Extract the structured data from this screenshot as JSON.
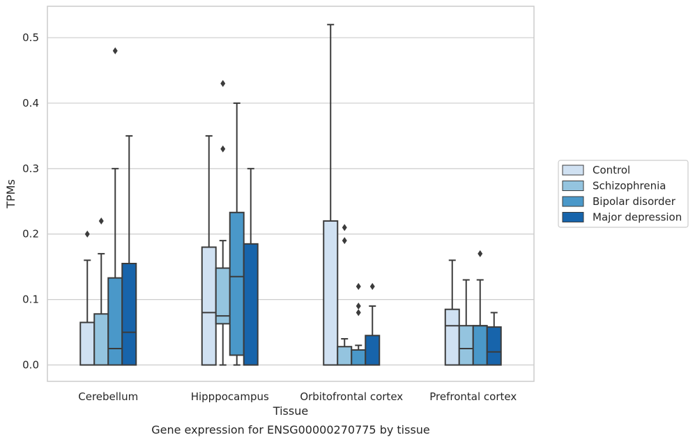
{
  "chart_data": {
    "type": "boxplot",
    "caption": "Gene expression for ENSG00000270775 by tissue",
    "xlabel": "Tissue",
    "ylabel": "TPMs",
    "ylim": [
      -0.025,
      0.548
    ],
    "yticks": [
      0.0,
      0.1,
      0.2,
      0.3,
      0.4,
      0.5
    ],
    "ytick_labels": [
      "0.0",
      "0.1",
      "0.2",
      "0.3",
      "0.4",
      "0.5"
    ],
    "grid": "horizontal",
    "legend_position": "right-center",
    "categories": [
      "Cerebellum",
      "Hipppocampus",
      "Orbitofrontal cortex",
      "Prefrontal cortex"
    ],
    "series": [
      {
        "name": "Control",
        "color": "#d0e1f2",
        "boxes": [
          {
            "whislo": 0.0,
            "q1": 0.0,
            "med": 0.0,
            "q3": 0.065,
            "whishi": 0.16,
            "fliers": [
              0.2
            ]
          },
          {
            "whislo": 0.0,
            "q1": 0.0,
            "med": 0.08,
            "q3": 0.18,
            "whishi": 0.35,
            "fliers": []
          },
          {
            "whislo": 0.0,
            "q1": 0.0,
            "med": 0.0,
            "q3": 0.22,
            "whishi": 0.52,
            "fliers": []
          },
          {
            "whislo": 0.0,
            "q1": 0.0,
            "med": 0.06,
            "q3": 0.085,
            "whishi": 0.16,
            "fliers": []
          }
        ]
      },
      {
        "name": "Schizophrenia",
        "color": "#94c4df",
        "boxes": [
          {
            "whislo": 0.0,
            "q1": 0.0,
            "med": 0.0,
            "q3": 0.078,
            "whishi": 0.17,
            "fliers": [
              0.22
            ]
          },
          {
            "whislo": 0.0,
            "q1": 0.063,
            "med": 0.075,
            "q3": 0.148,
            "whishi": 0.19,
            "fliers": [
              0.33,
              0.43
            ]
          },
          {
            "whislo": 0.0,
            "q1": 0.0,
            "med": 0.0,
            "q3": 0.028,
            "whishi": 0.04,
            "fliers": [
              0.19,
              0.21
            ]
          },
          {
            "whislo": 0.0,
            "q1": 0.0,
            "med": 0.025,
            "q3": 0.06,
            "whishi": 0.13,
            "fliers": []
          }
        ]
      },
      {
        "name": "Bipolar disorder",
        "color": "#4a98c9",
        "boxes": [
          {
            "whislo": 0.0,
            "q1": 0.0,
            "med": 0.025,
            "q3": 0.133,
            "whishi": 0.3,
            "fliers": [
              0.48
            ]
          },
          {
            "whislo": 0.0,
            "q1": 0.015,
            "med": 0.135,
            "q3": 0.233,
            "whishi": 0.4,
            "fliers": []
          },
          {
            "whislo": 0.0,
            "q1": 0.0,
            "med": 0.0,
            "q3": 0.023,
            "whishi": 0.03,
            "fliers": [
              0.08,
              0.09,
              0.12
            ]
          },
          {
            "whislo": 0.0,
            "q1": 0.0,
            "med": 0.06,
            "q3": 0.06,
            "whishi": 0.13,
            "fliers": [
              0.17
            ]
          }
        ]
      },
      {
        "name": "Major depression",
        "color": "#1764ab",
        "boxes": [
          {
            "whislo": 0.0,
            "q1": 0.0,
            "med": 0.05,
            "q3": 0.155,
            "whishi": 0.35,
            "fliers": []
          },
          {
            "whislo": 0.0,
            "q1": 0.0,
            "med": 0.0,
            "q3": 0.185,
            "whishi": 0.3,
            "fliers": []
          },
          {
            "whislo": 0.0,
            "q1": 0.0,
            "med": 0.0,
            "q3": 0.045,
            "whishi": 0.09,
            "fliers": [
              0.12
            ]
          },
          {
            "whislo": 0.0,
            "q1": 0.0,
            "med": 0.02,
            "q3": 0.058,
            "whishi": 0.08,
            "fliers": []
          }
        ]
      }
    ]
  }
}
